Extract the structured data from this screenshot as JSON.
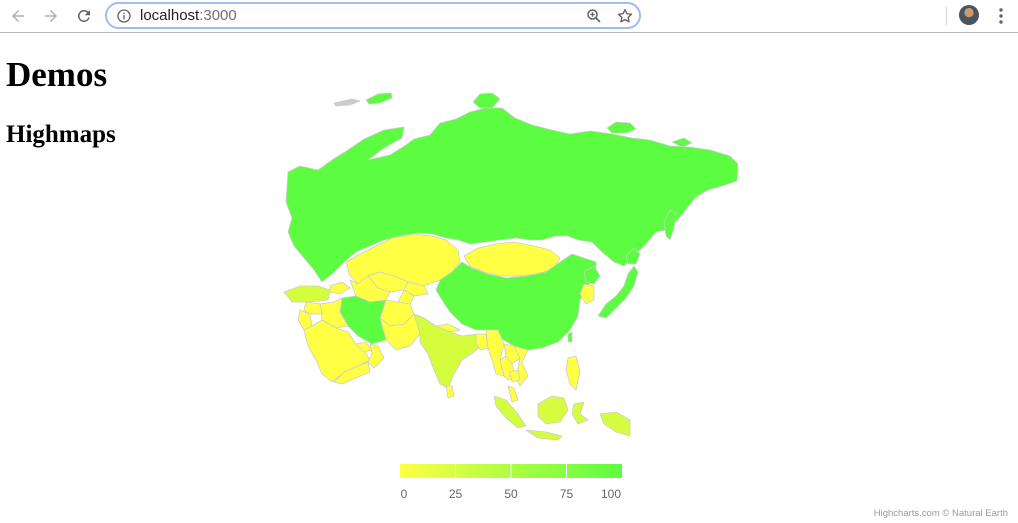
{
  "browser": {
    "url_host": "localhost",
    "url_port": ":3000",
    "icons": {
      "back": "arrow-left-icon",
      "forward": "arrow-right-icon",
      "reload": "reload-icon",
      "info": "info-icon",
      "zoom": "zoom-icon",
      "bookmark": "star-icon",
      "menu": "more-vert-icon"
    }
  },
  "page": {
    "heading": "Demos",
    "subheading": "Highmaps"
  },
  "map": {
    "color_axis": {
      "min": 0,
      "max": 100,
      "min_color": "#ffff44",
      "max_color": "#5cfd41",
      "ticks": [
        "0",
        "25",
        "50",
        "75",
        "100"
      ]
    },
    "border_color": "#cccccc",
    "credits": "Highcharts.com © Natural Earth"
  }
}
